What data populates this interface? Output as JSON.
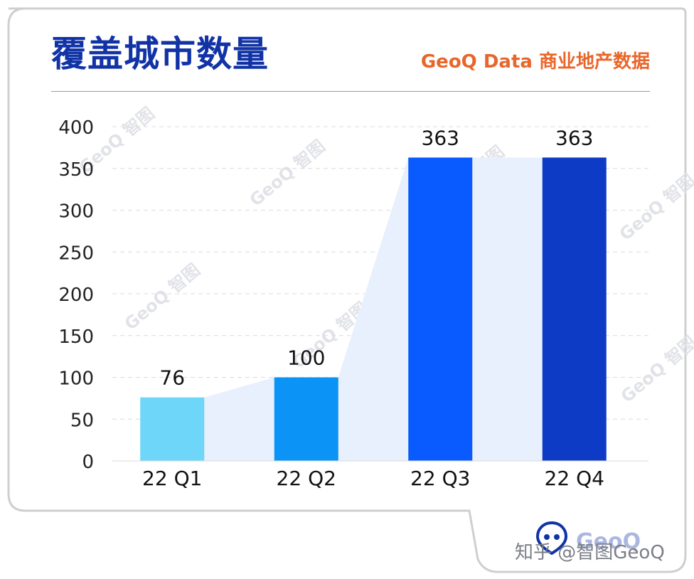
{
  "header": {
    "title": "覆盖城市数量",
    "source": "GeoQ Data 商业地产数据"
  },
  "watermark": {
    "text": "GeoQ 智图",
    "credit": "知乎 @智图GeoQ",
    "logo_text": "GeoQ"
  },
  "colors": {
    "title": "#1133a6",
    "source": "#e8662a",
    "area_fill": "#e8effd",
    "bars": [
      "#6ed6f8",
      "#0b93f6",
      "#0a5bff",
      "#0d3bc5"
    ]
  },
  "chart_data": {
    "type": "bar",
    "title": "",
    "categories": [
      "22 Q1",
      "22 Q2",
      "22 Q3",
      "22 Q4"
    ],
    "values": [
      76,
      100,
      363,
      363
    ],
    "data_labels": [
      "76",
      "100",
      "363",
      "363"
    ],
    "ylim": [
      0,
      400
    ],
    "yticks": [
      0,
      50,
      100,
      150,
      200,
      250,
      300,
      350,
      400
    ],
    "grid": true,
    "legend": "none"
  }
}
